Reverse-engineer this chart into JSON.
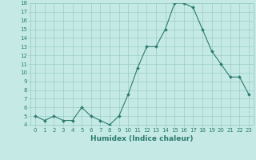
{
  "x": [
    0,
    1,
    2,
    3,
    4,
    5,
    6,
    7,
    8,
    9,
    10,
    11,
    12,
    13,
    14,
    15,
    16,
    17,
    18,
    19,
    20,
    21,
    22,
    23
  ],
  "y": [
    5.0,
    4.5,
    5.0,
    4.5,
    4.5,
    6.0,
    5.0,
    4.5,
    4.0,
    5.0,
    7.5,
    10.5,
    13.0,
    13.0,
    15.0,
    18.0,
    18.0,
    17.5,
    15.0,
    12.5,
    11.0,
    9.5,
    9.5,
    7.5
  ],
  "xlabel": "Humidex (Indice chaleur)",
  "line_color": "#2d7b6e",
  "marker_color": "#2d7b6e",
  "bg_color": "#c5eae6",
  "grid_color": "#9accc6",
  "ylim": [
    4,
    18
  ],
  "xlim": [
    -0.5,
    23.5
  ],
  "yticks": [
    4,
    5,
    6,
    7,
    8,
    9,
    10,
    11,
    12,
    13,
    14,
    15,
    16,
    17,
    18
  ],
  "xticks": [
    0,
    1,
    2,
    3,
    4,
    5,
    6,
    7,
    8,
    9,
    10,
    11,
    12,
    13,
    14,
    15,
    16,
    17,
    18,
    19,
    20,
    21,
    22,
    23
  ],
  "xtick_labels": [
    "0",
    "1",
    "2",
    "3",
    "4",
    "5",
    "6",
    "7",
    "8",
    "9",
    "10",
    "11",
    "12",
    "13",
    "14",
    "15",
    "16",
    "17",
    "18",
    "19",
    "20",
    "21",
    "22",
    "23"
  ],
  "ytick_labels": [
    "4",
    "5",
    "6",
    "7",
    "8",
    "9",
    "10",
    "11",
    "12",
    "13",
    "14",
    "15",
    "16",
    "17",
    "18"
  ],
  "marker_size": 2.0,
  "line_width": 0.8,
  "tick_fontsize": 5.0,
  "xlabel_fontsize": 6.5
}
